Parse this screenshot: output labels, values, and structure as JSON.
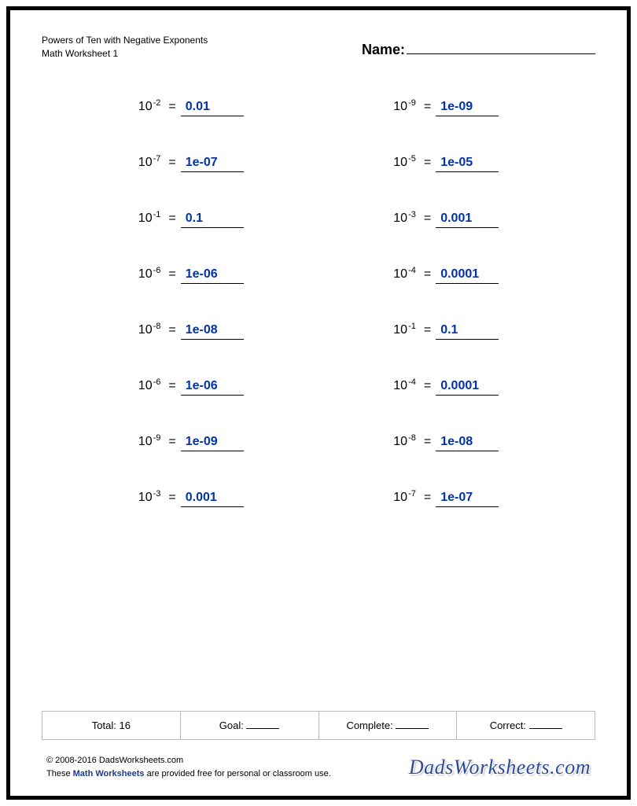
{
  "header": {
    "title_line1": "Powers of Ten with Negative Exponents",
    "title_line2": "Math Worksheet 1",
    "name_label": "Name:"
  },
  "answer_color": "#0033aa",
  "problems": [
    [
      {
        "base": "10",
        "exponent": "-2",
        "answer": "0.01"
      },
      {
        "base": "10",
        "exponent": "-9",
        "answer": "1e-09"
      }
    ],
    [
      {
        "base": "10",
        "exponent": "-7",
        "answer": "1e-07"
      },
      {
        "base": "10",
        "exponent": "-5",
        "answer": "1e-05"
      }
    ],
    [
      {
        "base": "10",
        "exponent": "-1",
        "answer": "0.1"
      },
      {
        "base": "10",
        "exponent": "-3",
        "answer": "0.001"
      }
    ],
    [
      {
        "base": "10",
        "exponent": "-6",
        "answer": "1e-06"
      },
      {
        "base": "10",
        "exponent": "-4",
        "answer": "0.0001"
      }
    ],
    [
      {
        "base": "10",
        "exponent": "-8",
        "answer": "1e-08"
      },
      {
        "base": "10",
        "exponent": "-1",
        "answer": "0.1"
      }
    ],
    [
      {
        "base": "10",
        "exponent": "-6",
        "answer": "1e-06"
      },
      {
        "base": "10",
        "exponent": "-4",
        "answer": "0.0001"
      }
    ],
    [
      {
        "base": "10",
        "exponent": "-9",
        "answer": "1e-09"
      },
      {
        "base": "10",
        "exponent": "-8",
        "answer": "1e-08"
      }
    ],
    [
      {
        "base": "10",
        "exponent": "-3",
        "answer": "0.001"
      },
      {
        "base": "10",
        "exponent": "-7",
        "answer": "1e-07"
      }
    ]
  ],
  "footer": {
    "total_label": "Total: 16",
    "goal_label": "Goal:",
    "complete_label": "Complete:",
    "correct_label": "Correct:"
  },
  "copyright": {
    "line1": "© 2008-2016 DadsWorksheets.com",
    "line2_a": "These",
    "line2_b": "Math Worksheets",
    "line2_c": "are provided free for personal or classroom use.",
    "brand": "DadsWorksheets.com"
  }
}
